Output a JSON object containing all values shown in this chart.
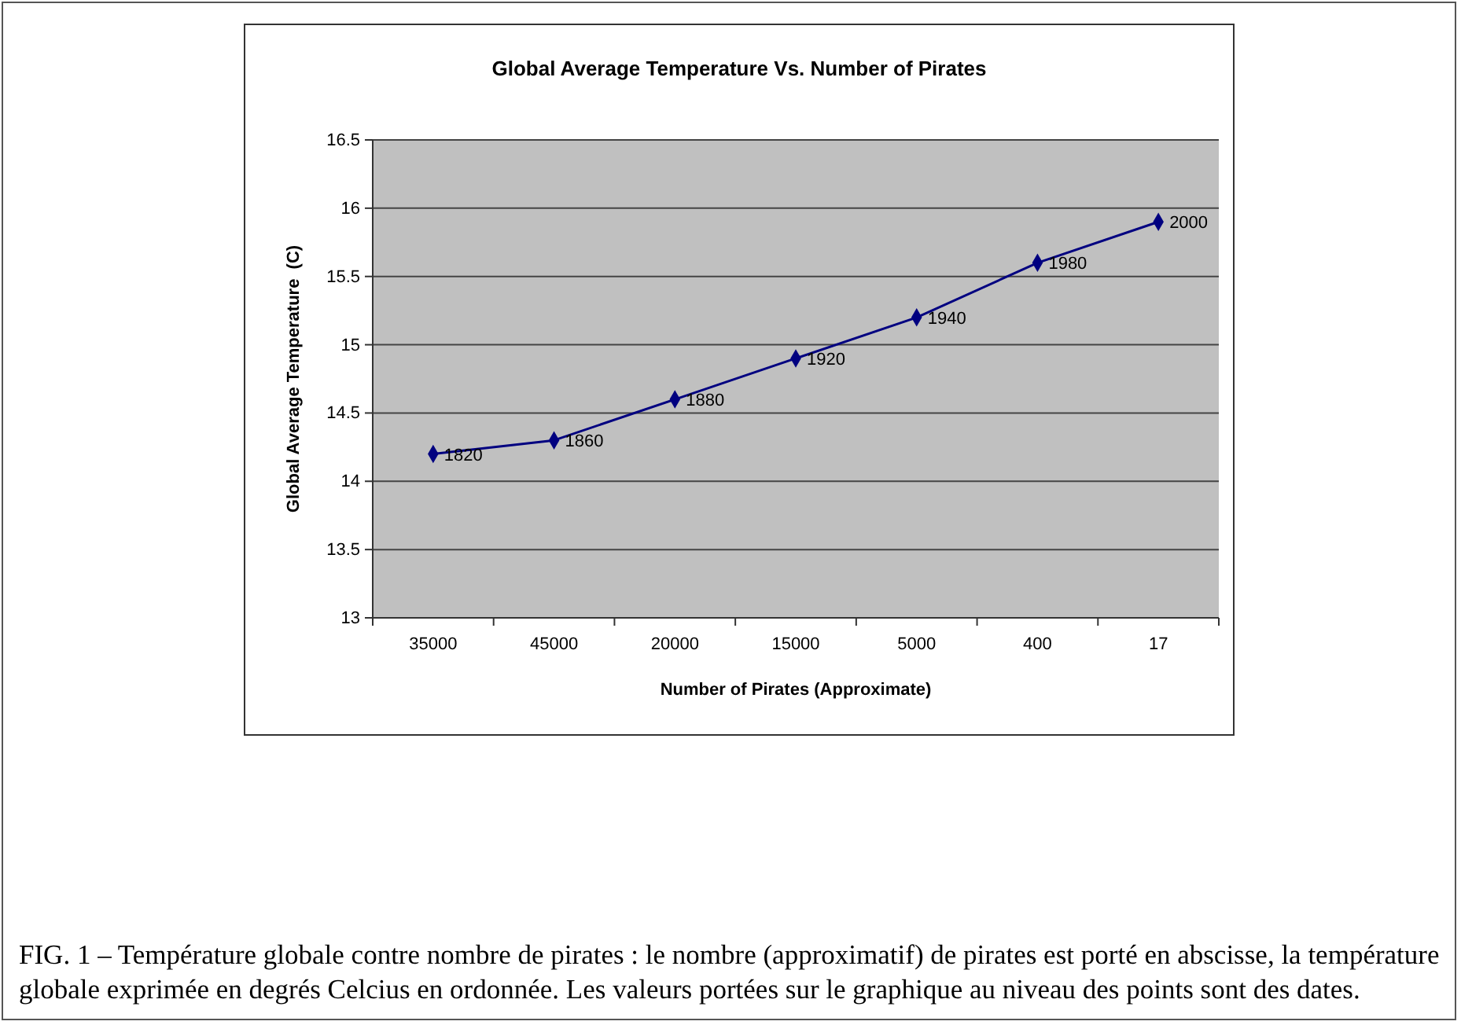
{
  "chart_data": {
    "type": "line",
    "title": "Global Average Temperature Vs. Number of Pirates",
    "xlabel": "Number of Pirates (Approximate)",
    "ylabel": "Global Average Temperature  (C)",
    "categories": [
      "35000",
      "45000",
      "20000",
      "15000",
      "5000",
      "400",
      "17"
    ],
    "series": [
      {
        "color": "#000080",
        "values": [
          14.2,
          14.3,
          14.6,
          14.9,
          15.2,
          15.6,
          15.9
        ]
      }
    ],
    "ylim": [
      13,
      16.5
    ],
    "yticks": [
      13,
      13.5,
      14,
      14.5,
      15,
      15.5,
      16,
      16.5
    ],
    "grid": "y",
    "marker": "diamond",
    "line_style": "solid",
    "annotations": [
      {
        "text": "1820",
        "x": "35000",
        "y": 14.2
      },
      {
        "text": "1860",
        "x": "45000",
        "y": 14.3
      },
      {
        "text": "1880",
        "x": "20000",
        "y": 14.6
      },
      {
        "text": "1920",
        "x": "15000",
        "y": 14.9
      },
      {
        "text": "1940",
        "x": "5000",
        "y": 15.2
      },
      {
        "text": "1980",
        "x": "400",
        "y": 15.6
      },
      {
        "text": "2000",
        "x": "17",
        "y": 15.9
      },
      "FIG. 1 – Température globale contre nombre de pirates : le nombre (approximatif) de pirates est porté en abscisse, la température globale exprimée en degrés Celcius en ordonnée. Les valeurs portées sur le graphique au niveau des points sont des dates."
    ]
  }
}
